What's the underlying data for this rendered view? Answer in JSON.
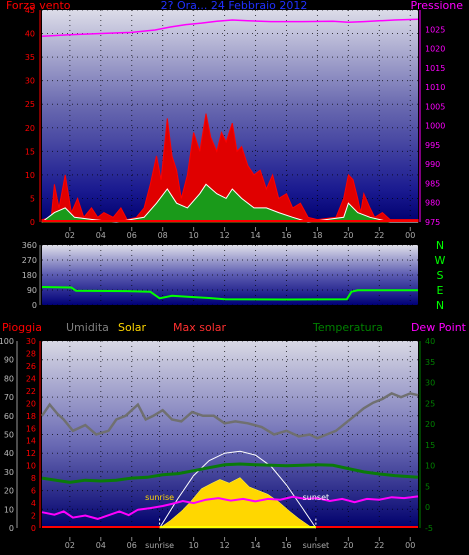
{
  "colors": {
    "wind": "#ff0000",
    "gust_fill": "#e00000",
    "pressure": "#ff00ff",
    "humidity": "#808080",
    "solar": "#ffd700",
    "max_solar": "#ff3030",
    "temperature": "#008000",
    "dew_point": "#ff00ff",
    "direction": "#00ff00",
    "daylight": "#ffff00",
    "rain_axis": "#ff0000",
    "title": "#2030ff"
  },
  "chart_data": [
    {
      "type": "area",
      "name_label": "Forza vento",
      "right_label": "Pressione",
      "title": "2? Ora... 24 Febbraio 2012",
      "x_tick_labels": [
        "02",
        "04",
        "06",
        "08",
        "10",
        "12",
        "14",
        "16",
        "18",
        "20",
        "22",
        "00"
      ],
      "x_ticks_hours": [
        2,
        4,
        6,
        8,
        10,
        12,
        14,
        16,
        18,
        20,
        22,
        24
      ],
      "xlim_hours": [
        0.2,
        24.5
      ],
      "ylim_left": [
        0,
        45
      ],
      "yticks_left": [
        0,
        5,
        10,
        15,
        20,
        25,
        30,
        35,
        40,
        45
      ],
      "ylim_right": [
        975,
        1030
      ],
      "yticks_right": [
        975,
        980,
        985,
        990,
        995,
        1000,
        1005,
        1010,
        1015,
        1020,
        1025
      ],
      "pressure_points": [
        [
          0.2,
          1023.2
        ],
        [
          2,
          1023.6
        ],
        [
          4,
          1023.9
        ],
        [
          6,
          1024.2
        ],
        [
          7.5,
          1024.8
        ],
        [
          8.5,
          1025.6
        ],
        [
          9.5,
          1026.2
        ],
        [
          10.5,
          1026.6
        ],
        [
          11.5,
          1027.1
        ],
        [
          12.5,
          1027.4
        ],
        [
          13.5,
          1027.2
        ],
        [
          15,
          1027.0
        ],
        [
          17,
          1027.0
        ],
        [
          19,
          1027.1
        ],
        [
          20,
          1026.8
        ],
        [
          21,
          1027.0
        ],
        [
          22,
          1027.2
        ],
        [
          23,
          1027.4
        ],
        [
          24.5,
          1027.6
        ]
      ],
      "gust_points": [
        [
          0.2,
          0.5
        ],
        [
          0.8,
          1
        ],
        [
          1,
          8
        ],
        [
          1.3,
          3
        ],
        [
          1.7,
          10
        ],
        [
          2.1,
          2
        ],
        [
          2.5,
          5
        ],
        [
          2.9,
          1
        ],
        [
          3.4,
          3
        ],
        [
          3.8,
          1
        ],
        [
          4.2,
          2
        ],
        [
          4.8,
          1
        ],
        [
          5.3,
          3
        ],
        [
          5.7,
          0.5
        ],
        [
          6.3,
          1
        ],
        [
          6.8,
          3
        ],
        [
          7.2,
          8
        ],
        [
          7.6,
          14
        ],
        [
          7.9,
          9
        ],
        [
          8.3,
          22
        ],
        [
          8.6,
          14
        ],
        [
          8.9,
          11
        ],
        [
          9.2,
          5
        ],
        [
          9.6,
          10
        ],
        [
          10.0,
          19
        ],
        [
          10.4,
          15
        ],
        [
          10.8,
          23
        ],
        [
          11.1,
          18
        ],
        [
          11.5,
          15
        ],
        [
          11.8,
          19
        ],
        [
          12.1,
          17
        ],
        [
          12.5,
          21
        ],
        [
          12.8,
          15
        ],
        [
          13.1,
          16
        ],
        [
          13.5,
          12
        ],
        [
          13.9,
          10
        ],
        [
          14.3,
          11
        ],
        [
          14.7,
          7
        ],
        [
          15.1,
          10
        ],
        [
          15.5,
          5
        ],
        [
          16.0,
          6
        ],
        [
          16.4,
          3
        ],
        [
          16.9,
          4
        ],
        [
          17.4,
          1
        ],
        [
          18,
          0.5
        ],
        [
          19.2,
          1
        ],
        [
          19.7,
          5
        ],
        [
          20.0,
          10
        ],
        [
          20.3,
          9
        ],
        [
          20.6,
          5
        ],
        [
          20.8,
          2
        ],
        [
          21.0,
          6
        ],
        [
          21.4,
          3
        ],
        [
          21.7,
          1
        ],
        [
          22.2,
          2
        ],
        [
          22.7,
          0.5
        ],
        [
          24.5,
          0.5
        ]
      ],
      "wind_points": [
        [
          0.2,
          0
        ],
        [
          1,
          2
        ],
        [
          1.7,
          3
        ],
        [
          2.3,
          1
        ],
        [
          3.5,
          0.5
        ],
        [
          5,
          0
        ],
        [
          6.8,
          1
        ],
        [
          7.6,
          4
        ],
        [
          8.3,
          7
        ],
        [
          8.9,
          4
        ],
        [
          9.6,
          3
        ],
        [
          10.4,
          6
        ],
        [
          10.8,
          8
        ],
        [
          11.5,
          6
        ],
        [
          12.1,
          5
        ],
        [
          12.5,
          7
        ],
        [
          13.1,
          5
        ],
        [
          13.9,
          3
        ],
        [
          14.7,
          3
        ],
        [
          15.5,
          2
        ],
        [
          16.4,
          1
        ],
        [
          17.4,
          0
        ],
        [
          19.7,
          1
        ],
        [
          20.0,
          4
        ],
        [
          20.6,
          2
        ],
        [
          21.4,
          1
        ],
        [
          22.7,
          0
        ],
        [
          24.5,
          0
        ]
      ]
    },
    {
      "type": "line",
      "name": "direction",
      "ylim": [
        0,
        360
      ],
      "yticks": [
        0,
        90,
        180,
        270,
        360
      ],
      "compass_labels": [
        "N",
        "W",
        "S",
        "E",
        "N"
      ],
      "points": [
        [
          0.2,
          108
        ],
        [
          2.1,
          105
        ],
        [
          2.4,
          85
        ],
        [
          6.0,
          83
        ],
        [
          7.2,
          80
        ],
        [
          7.8,
          40
        ],
        [
          8.6,
          55
        ],
        [
          9.6,
          50
        ],
        [
          11,
          42
        ],
        [
          12,
          35
        ],
        [
          16,
          33
        ],
        [
          19.9,
          34
        ],
        [
          20.2,
          80
        ],
        [
          20.6,
          88
        ],
        [
          24.5,
          88
        ]
      ]
    },
    {
      "type": "line",
      "labels": {
        "rain": "Pioggia",
        "humidity": "Umidita",
        "solar": "Solar",
        "max_solar": "Max solar",
        "temperature": "Temperatura",
        "dew_point": "Dew Point",
        "sunrise": "sunrise",
        "sunset": "sunset"
      },
      "x_tick_labels": [
        "02",
        "04",
        "06",
        "sunrise",
        "10",
        "12",
        "14",
        "16",
        "sunset",
        "20",
        "22",
        "00"
      ],
      "x_ticks_hours": [
        2,
        4,
        6,
        7.8,
        10,
        12,
        14,
        16,
        17.9,
        20,
        22,
        24
      ],
      "ylim_humidity": [
        0,
        100
      ],
      "yticks_humidity": [
        0,
        10,
        20,
        30,
        40,
        50,
        60,
        70,
        80,
        90,
        100
      ],
      "ylim_rain": [
        0,
        30
      ],
      "yticks_rain": [
        0,
        2,
        4,
        6,
        8,
        10,
        12,
        14,
        16,
        18,
        20,
        22,
        24,
        26,
        28,
        30
      ],
      "ylim_temp": [
        -5,
        40
      ],
      "yticks_temp": [
        -5,
        0,
        5,
        10,
        15,
        20,
        25,
        30,
        35,
        40
      ],
      "sunrise_hour": 7.8,
      "sunset_hour": 17.9,
      "humidity_points": [
        [
          0.2,
          60
        ],
        [
          0.7,
          66
        ],
        [
          1.2,
          61
        ],
        [
          1.6,
          58
        ],
        [
          2.2,
          52
        ],
        [
          3,
          55
        ],
        [
          3.7,
          50
        ],
        [
          4.5,
          52
        ],
        [
          5,
          58
        ],
        [
          5.6,
          60
        ],
        [
          6,
          63
        ],
        [
          6.4,
          66
        ],
        [
          6.9,
          58
        ],
        [
          7.4,
          60
        ],
        [
          8,
          63
        ],
        [
          8.6,
          58
        ],
        [
          9.2,
          57
        ],
        [
          9.9,
          62
        ],
        [
          10.6,
          60
        ],
        [
          11.3,
          60
        ],
        [
          12,
          56
        ],
        [
          12.7,
          57
        ],
        [
          13.5,
          56
        ],
        [
          14.4,
          54
        ],
        [
          15.2,
          50
        ],
        [
          16,
          52
        ],
        [
          16.8,
          49
        ],
        [
          17.5,
          50
        ],
        [
          18,
          48
        ],
        [
          18.6,
          50
        ],
        [
          19.2,
          52
        ],
        [
          19.8,
          56
        ],
        [
          20.4,
          60
        ],
        [
          21,
          64
        ],
        [
          21.6,
          67
        ],
        [
          22.2,
          69
        ],
        [
          22.8,
          72
        ],
        [
          23.4,
          70
        ],
        [
          24,
          72
        ],
        [
          24.5,
          71
        ]
      ],
      "temperature_points": [
        [
          0.2,
          7
        ],
        [
          2,
          6
        ],
        [
          3,
          6.5
        ],
        [
          4,
          6.3
        ],
        [
          5,
          6.5
        ],
        [
          6,
          7
        ],
        [
          7,
          7.2
        ],
        [
          8,
          7.8
        ],
        [
          9,
          8.1
        ],
        [
          10,
          8.8
        ],
        [
          11,
          9.5
        ],
        [
          12,
          10.2
        ],
        [
          13,
          10.4
        ],
        [
          14,
          10.2
        ],
        [
          15,
          10.1
        ],
        [
          16,
          10.0
        ],
        [
          17,
          10.1
        ],
        [
          18,
          10.2
        ],
        [
          19,
          10.1
        ],
        [
          20,
          9.3
        ],
        [
          21,
          8.5
        ],
        [
          22,
          8.0
        ],
        [
          23,
          7.6
        ],
        [
          24.5,
          7.2
        ]
      ],
      "dew_point_points": [
        [
          0.2,
          -1.2
        ],
        [
          1,
          -1.8
        ],
        [
          1.6,
          -1.0
        ],
        [
          2.2,
          -2.5
        ],
        [
          3,
          -2.0
        ],
        [
          3.8,
          -2.8
        ],
        [
          4.6,
          -1.8
        ],
        [
          5.2,
          -1.0
        ],
        [
          5.8,
          -1.9
        ],
        [
          6.4,
          -0.6
        ],
        [
          7.2,
          -0.2
        ],
        [
          8,
          0.3
        ],
        [
          8.6,
          0.8
        ],
        [
          9.3,
          1.5
        ],
        [
          10,
          1.0
        ],
        [
          10.8,
          1.8
        ],
        [
          11.6,
          2.2
        ],
        [
          12.4,
          1.6
        ],
        [
          13.2,
          2.0
        ],
        [
          14,
          1.4
        ],
        [
          14.8,
          2.0
        ],
        [
          15.6,
          1.8
        ],
        [
          16.4,
          2.5
        ],
        [
          17.2,
          2.0
        ],
        [
          18,
          2.2
        ],
        [
          18.8,
          1.5
        ],
        [
          19.6,
          2.0
        ],
        [
          20.4,
          1.2
        ],
        [
          21.2,
          2.0
        ],
        [
          22,
          1.8
        ],
        [
          22.8,
          2.4
        ],
        [
          23.6,
          2.2
        ],
        [
          24.5,
          2.6
        ]
      ],
      "solar_points": [
        [
          7.8,
          0
        ],
        [
          8.5,
          4
        ],
        [
          9.2,
          9
        ],
        [
          9.8,
          14
        ],
        [
          10.5,
          21
        ],
        [
          11.2,
          24
        ],
        [
          11.7,
          26
        ],
        [
          12.3,
          24
        ],
        [
          13.0,
          27
        ],
        [
          13.6,
          22
        ],
        [
          14.2,
          20
        ],
        [
          14.8,
          18
        ],
        [
          15.5,
          14
        ],
        [
          16.2,
          9
        ],
        [
          16.8,
          5
        ],
        [
          17.5,
          1
        ],
        [
          17.9,
          0
        ]
      ],
      "max_solar_points": [
        [
          7.8,
          0
        ],
        [
          9,
          16
        ],
        [
          10,
          28
        ],
        [
          11,
          36
        ],
        [
          12,
          40
        ],
        [
          13,
          41
        ],
        [
          14,
          39
        ],
        [
          15,
          33
        ],
        [
          16,
          23
        ],
        [
          17,
          11
        ],
        [
          17.9,
          0
        ]
      ],
      "daylight_bar_hours": [
        7.8,
        17.9
      ]
    }
  ]
}
